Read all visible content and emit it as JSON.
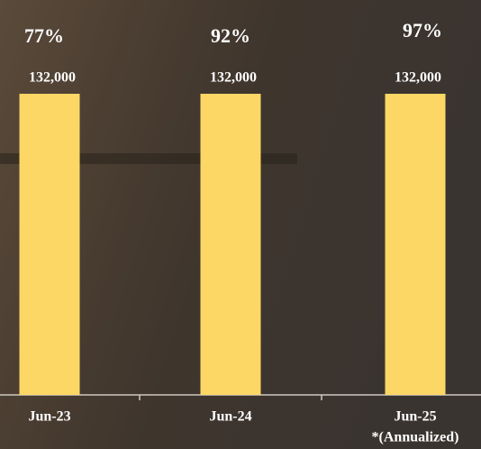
{
  "chart_data": {
    "type": "bar",
    "categories": [
      "Jun-23",
      "Jun-24",
      "Jun-25"
    ],
    "values": [
      132000,
      132000,
      132000
    ],
    "value_labels": [
      "132,000",
      "132,000",
      "132,000"
    ],
    "percent_labels": [
      "77%",
      "92%",
      "97%"
    ],
    "note": "*(Annualized)",
    "color": "#fdd766",
    "ylim": [
      0,
      132000
    ]
  }
}
